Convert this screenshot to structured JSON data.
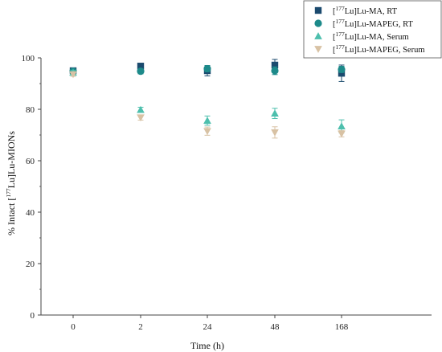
{
  "chart_data": {
    "type": "scatter",
    "title": "",
    "xlabel": "Time (h)",
    "ylabel_parts": {
      "prefix": "% Intact [",
      "sup": "177",
      "suffix": "Lu]Lu-MIONs"
    },
    "categories": [
      "0",
      "2",
      "24",
      "48",
      "168"
    ],
    "ylim": [
      0,
      100
    ],
    "yticks": [
      0,
      20,
      40,
      60,
      80,
      100
    ],
    "grid": false,
    "legend_position": "top-right",
    "series": [
      {
        "name_sup": "177",
        "name": "Lu]Lu-MA, RT",
        "marker": "square",
        "color": "#1b4a6e",
        "values": [
          95,
          96.8,
          95,
          97.2,
          94
        ],
        "errors": [
          1.0,
          0.8,
          2.0,
          2.2,
          3.2
        ]
      },
      {
        "name_sup": "177",
        "name": "Lu]Lu-MAPEG, RT",
        "marker": "circle",
        "color": "#1d8a8a",
        "values": [
          94.8,
          94.8,
          95.8,
          95,
          95.5
        ],
        "errors": [
          0.8,
          1.0,
          1.2,
          1.5,
          1.2
        ]
      },
      {
        "name_sup": "177",
        "name": "Lu]Lu-MA, Serum",
        "marker": "triangle-up",
        "color": "#4dbfad",
        "values": [
          94.3,
          79.8,
          75.6,
          78.4,
          73.4
        ],
        "errors": [
          0.8,
          1.0,
          1.8,
          2.0,
          2.5
        ]
      },
      {
        "name_sup": "177",
        "name": "Lu]Lu-MAPEG, Serum",
        "marker": "triangle-down",
        "color": "#d8c2a4",
        "values": [
          93.6,
          76.8,
          71.5,
          71.0,
          70.5
        ],
        "errors": [
          0.8,
          1.0,
          1.6,
          2.2,
          1.2
        ]
      }
    ]
  }
}
